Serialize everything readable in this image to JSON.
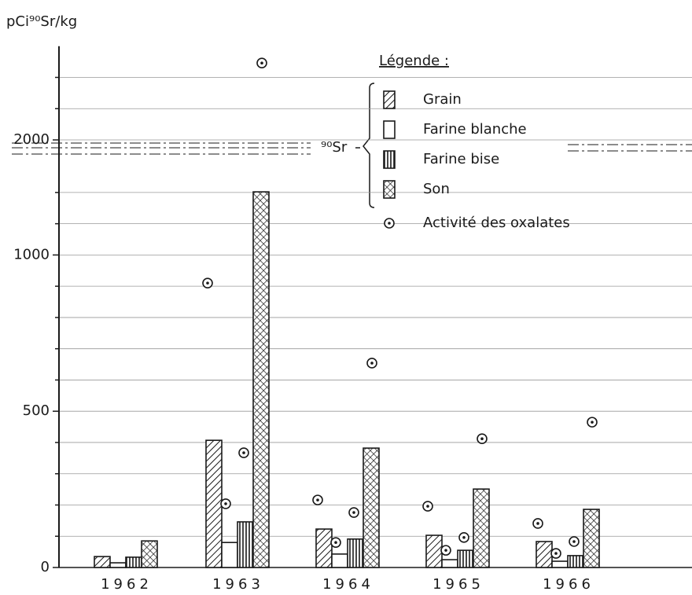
{
  "chart_data": {
    "type": "bar",
    "y_label": "pCi⁹⁰Sr/kg",
    "legend_title": "Légende :",
    "annotation": "⁹⁰Sr",
    "categories": [
      "1962",
      "1963",
      "1964",
      "1965",
      "1966"
    ],
    "series": [
      {
        "name": "Grain",
        "pattern": "diagonal",
        "values": [
          35,
          407,
          123,
          103,
          83
        ],
        "oxalates": [
          null,
          910,
          216,
          196,
          141
        ]
      },
      {
        "name": "Farine blanche",
        "pattern": "empty",
        "values": [
          15,
          80,
          43,
          25,
          20
        ],
        "oxalates": [
          null,
          204,
          80,
          55,
          45
        ]
      },
      {
        "name": "Farine bise",
        "pattern": "vertical",
        "values": [
          33,
          146,
          91,
          55,
          38
        ],
        "oxalates": [
          null,
          367,
          176,
          96,
          83
        ]
      },
      {
        "name": "Son",
        "pattern": "cross",
        "values": [
          85,
          1202,
          382,
          251,
          186
        ],
        "oxalates": [
          null,
          2246,
          654,
          412,
          465
        ]
      }
    ],
    "oxalate_name": "Activité des oxalates",
    "ylim": [
      0,
      2300
    ],
    "axis_break": [
      1300,
      2000
    ],
    "yticks": [
      0,
      500,
      1000,
      2000
    ],
    "minor_yticks": [
      100,
      200,
      300,
      400,
      600,
      700,
      800,
      900,
      1100,
      1200,
      2100,
      2200
    ],
    "reference_level": 2000,
    "grid": true,
    "color": "#1a1a1a"
  }
}
